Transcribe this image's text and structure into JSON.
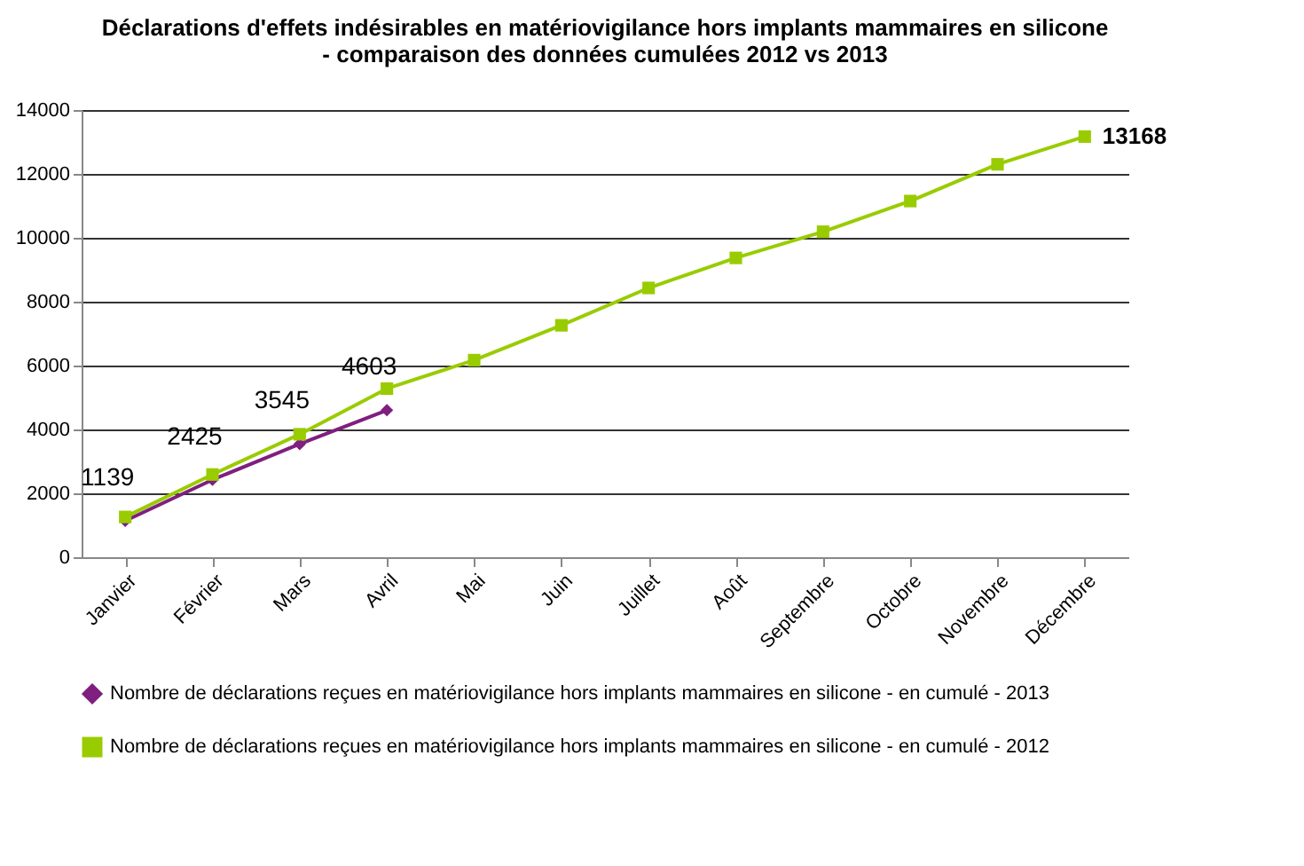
{
  "chart_data": {
    "type": "line",
    "title": "Déclarations d'effets indésirables en matériovigilance hors implants mammaires en silicone - comparaison des données cumulées 2012 vs 2013",
    "categories": [
      "Janvier",
      "Février",
      "Mars",
      "Avril",
      "Mai",
      "Juin",
      "Juillet",
      "Août",
      "Septembre",
      "Octobre",
      "Novembre",
      "Décembre"
    ],
    "series": [
      {
        "name": "Nombre de déclarations reçues en matériovigilance hors implants mammaires en silicone - en cumulé - 2013",
        "color": "#7f1f7f",
        "marker": "diamond",
        "values": [
          1139,
          2425,
          3545,
          4603,
          null,
          null,
          null,
          null,
          null,
          null,
          null,
          null
        ],
        "value_labels": [
          "1139",
          "2425",
          "3545",
          "4603",
          null,
          null,
          null,
          null,
          null,
          null,
          null,
          null
        ]
      },
      {
        "name": "Nombre de déclarations reçues en matériovigilance hors implants mammaires en silicone - en cumulé - 2012",
        "color": "#99cc00",
        "marker": "square",
        "values": [
          1260,
          2590,
          3850,
          5280,
          6170,
          7260,
          8430,
          9370,
          10190,
          11150,
          12300,
          13168
        ],
        "value_labels": [
          null,
          null,
          null,
          null,
          null,
          null,
          null,
          null,
          null,
          null,
          null,
          "13168"
        ]
      }
    ],
    "ylim": [
      0,
      14000
    ],
    "yticks": [
      0,
      2000,
      4000,
      6000,
      8000,
      10000,
      12000,
      14000
    ],
    "grid": "y",
    "legend": "bottom"
  }
}
